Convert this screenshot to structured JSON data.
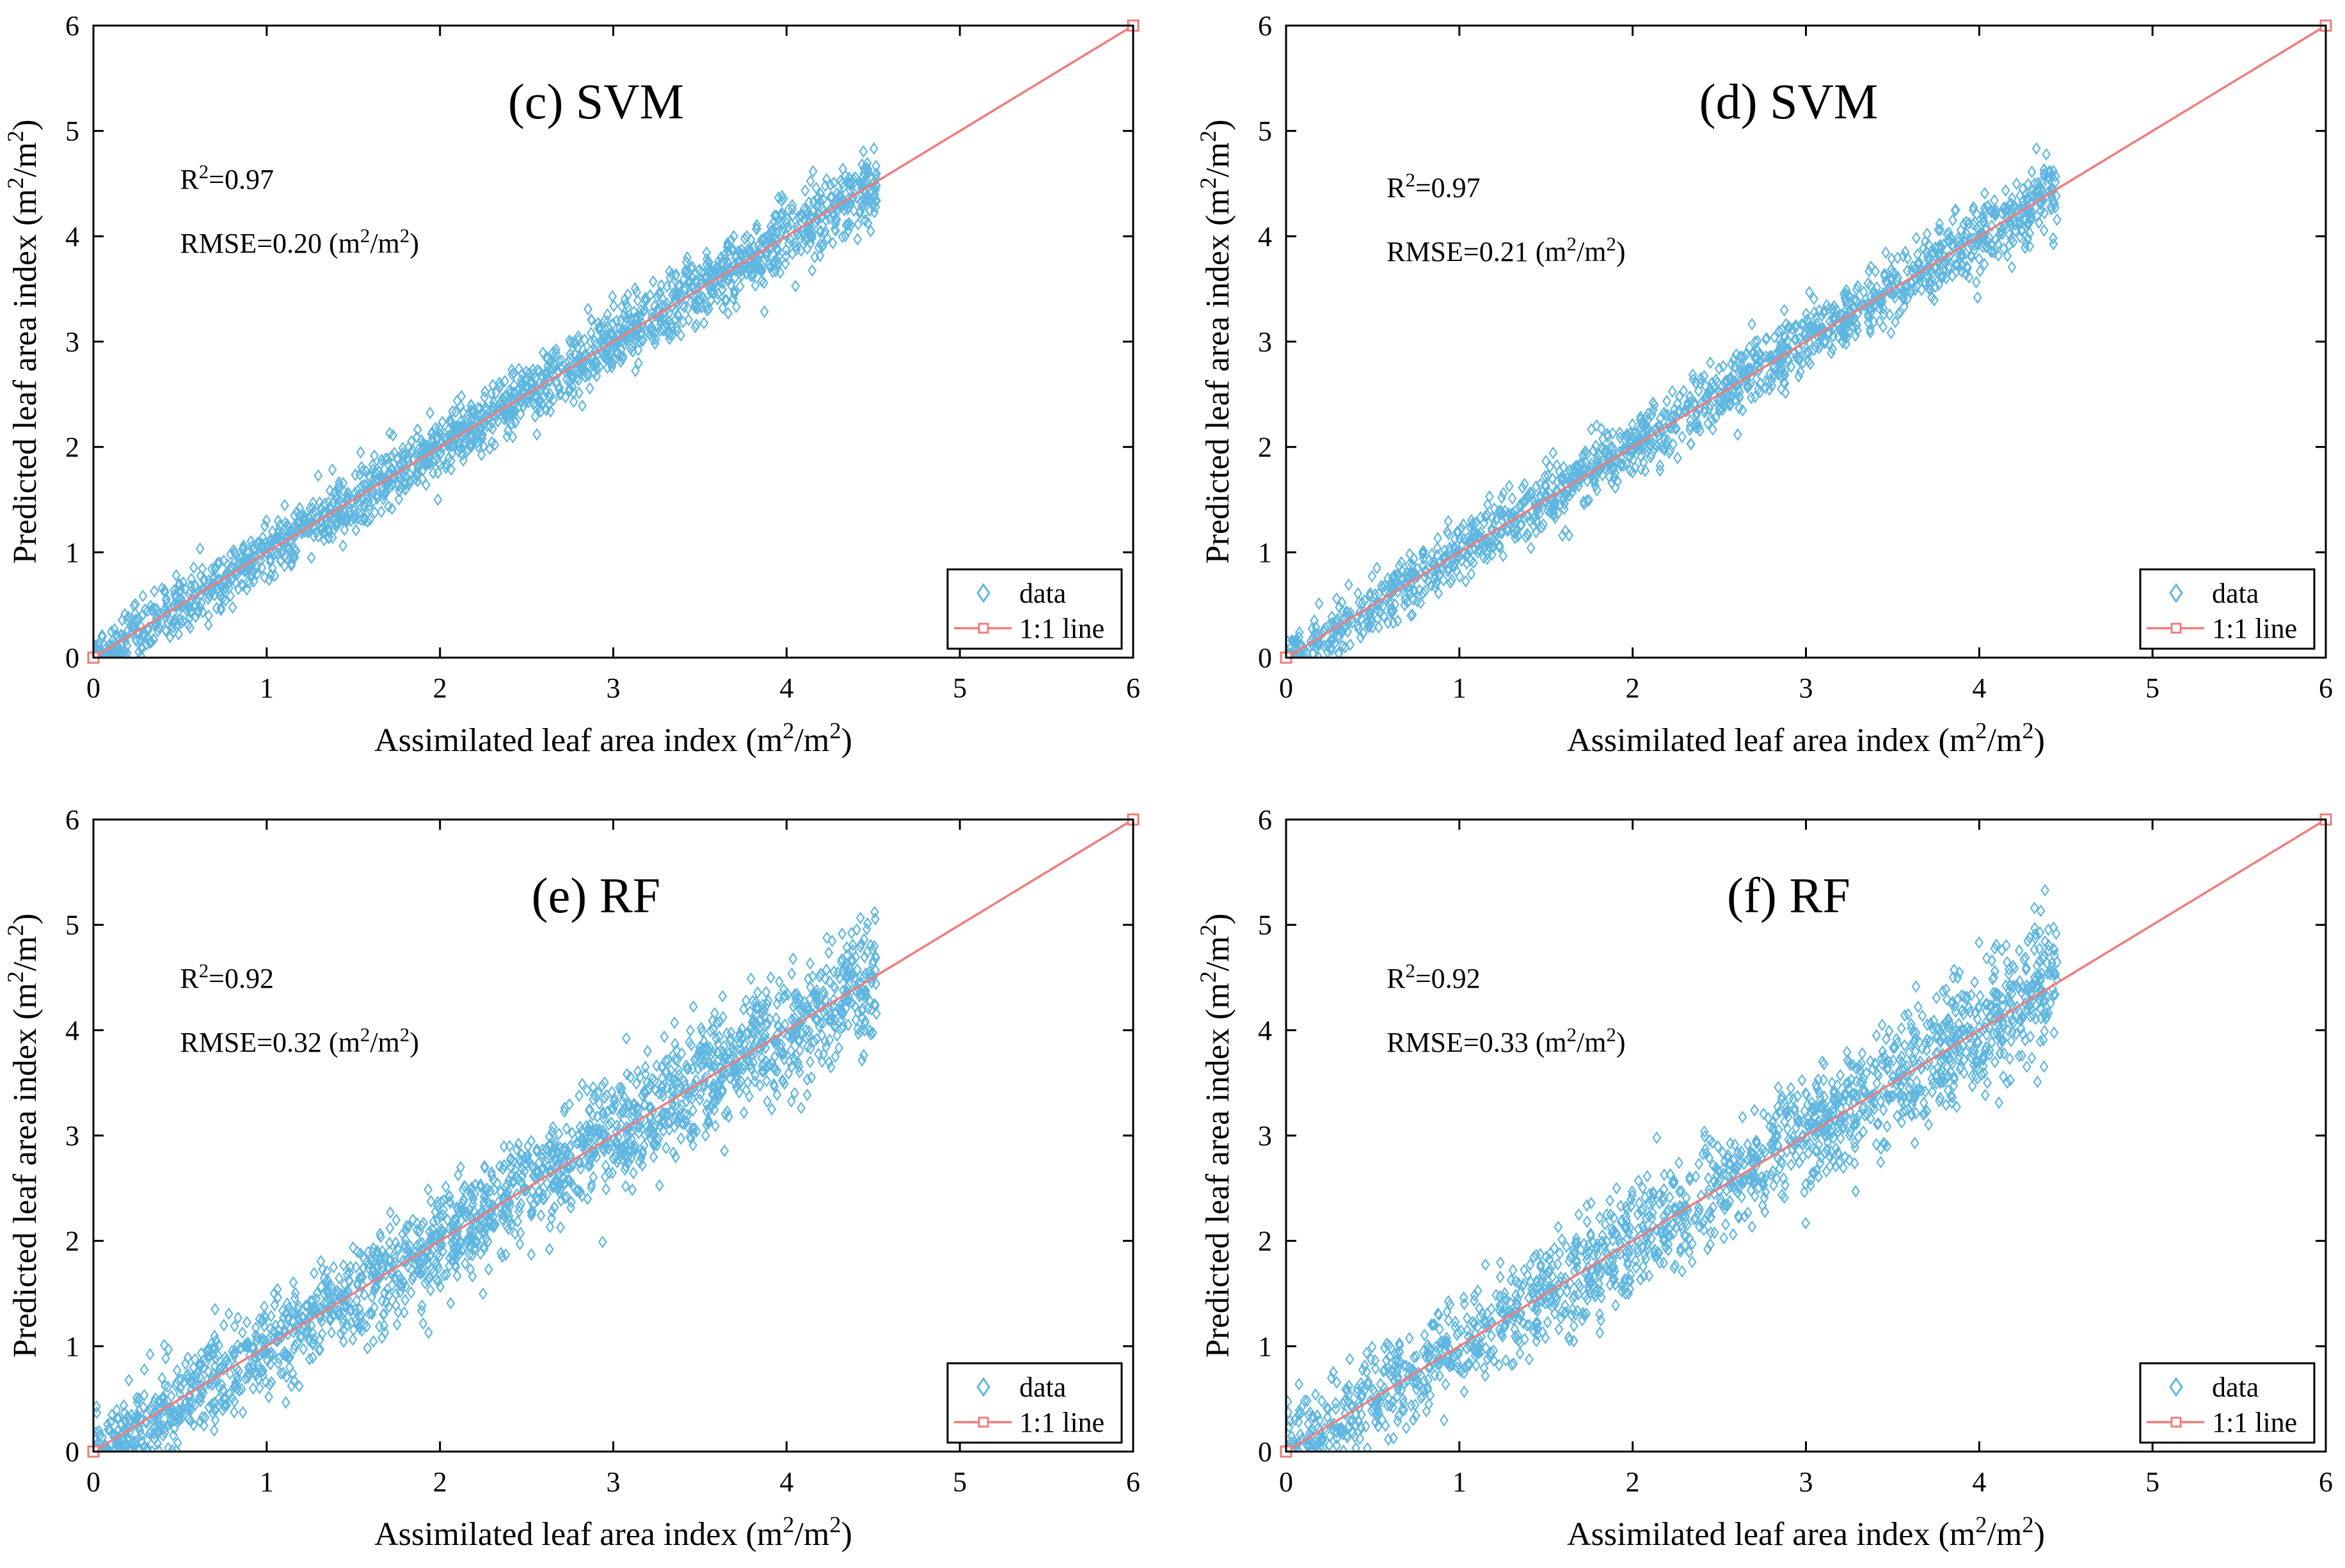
{
  "colors": {
    "scatter": "#5eb6e0",
    "line": "#f07c7c",
    "axis": "#000000",
    "background": "#ffffff"
  },
  "legend": {
    "data_label": "data",
    "line_label": "1:1 line",
    "placement": "bottom-right"
  },
  "chart_data": [
    {
      "type": "scatter",
      "title": "(c) SVM",
      "xlabel": "Assimilated leaf area index (m2/m2)",
      "ylabel": "Predicted leaf area index (m2/m2)",
      "xlim": [
        0,
        6
      ],
      "ylim": [
        0,
        6
      ],
      "xticks": [
        0,
        1,
        2,
        3,
        4,
        5,
        6
      ],
      "yticks": [
        0,
        1,
        2,
        3,
        4,
        5,
        6
      ],
      "r2_text": "R2=0.97",
      "rmse_text": "RMSE=0.20 (m2/m2)",
      "r2": 0.97,
      "rmse": 0.2,
      "x_range": [
        0,
        4.52
      ],
      "spread_sd": 0.16,
      "points": 1800,
      "series": [
        {
          "name": "data",
          "kind": "scatter"
        },
        {
          "name": "1:1 line",
          "kind": "line",
          "x": [
            0,
            6
          ],
          "y": [
            0,
            6
          ]
        }
      ]
    },
    {
      "type": "scatter",
      "title": "(d) SVM",
      "xlabel": "Assimilated leaf area index (m2/m2)",
      "ylabel": "Predicted leaf area index (m2/m2)",
      "xlim": [
        0,
        6
      ],
      "ylim": [
        0,
        6
      ],
      "xticks": [
        0,
        1,
        2,
        3,
        4,
        5,
        6
      ],
      "yticks": [
        0,
        1,
        2,
        3,
        4,
        5,
        6
      ],
      "r2_text": "R2=0.97",
      "rmse_text": "RMSE=0.21 (m2/m2)",
      "r2": 0.97,
      "rmse": 0.21,
      "x_range": [
        0,
        4.45
      ],
      "spread_sd": 0.17,
      "points": 1500,
      "series": [
        {
          "name": "data",
          "kind": "scatter"
        },
        {
          "name": "1:1 line",
          "kind": "line",
          "x": [
            0,
            6
          ],
          "y": [
            0,
            6
          ]
        }
      ]
    },
    {
      "type": "scatter",
      "title": "(e) RF",
      "xlabel": "Assimilated leaf area index (m2/m2)",
      "ylabel": "Predicted leaf area index (m2/m2)",
      "xlim": [
        0,
        6
      ],
      "ylim": [
        0,
        6
      ],
      "xticks": [
        0,
        1,
        2,
        3,
        4,
        5,
        6
      ],
      "yticks": [
        0,
        1,
        2,
        3,
        4,
        5,
        6
      ],
      "r2_text": "R2=0.92",
      "rmse_text": "RMSE=0.32 (m2/m2)",
      "r2": 0.92,
      "rmse": 0.32,
      "x_range": [
        0,
        4.52
      ],
      "spread_sd": 0.27,
      "points": 2000,
      "series": [
        {
          "name": "data",
          "kind": "scatter"
        },
        {
          "name": "1:1 line",
          "kind": "line",
          "x": [
            0,
            6
          ],
          "y": [
            0,
            6
          ]
        }
      ]
    },
    {
      "type": "scatter",
      "title": "(f) RF",
      "xlabel": "Assimilated leaf area index (m2/m2)",
      "ylabel": "Predicted leaf area index (m2/m2)",
      "xlim": [
        0,
        6
      ],
      "ylim": [
        0,
        6
      ],
      "xticks": [
        0,
        1,
        2,
        3,
        4,
        5,
        6
      ],
      "yticks": [
        0,
        1,
        2,
        3,
        4,
        5,
        6
      ],
      "r2_text": "R2=0.92",
      "rmse_text": "RMSE=0.33 (m2/m2)",
      "r2": 0.92,
      "rmse": 0.33,
      "x_range": [
        0,
        4.45
      ],
      "spread_sd": 0.28,
      "points": 1700,
      "series": [
        {
          "name": "data",
          "kind": "scatter"
        },
        {
          "name": "1:1 line",
          "kind": "line",
          "x": [
            0,
            6
          ],
          "y": [
            0,
            6
          ]
        }
      ]
    }
  ]
}
